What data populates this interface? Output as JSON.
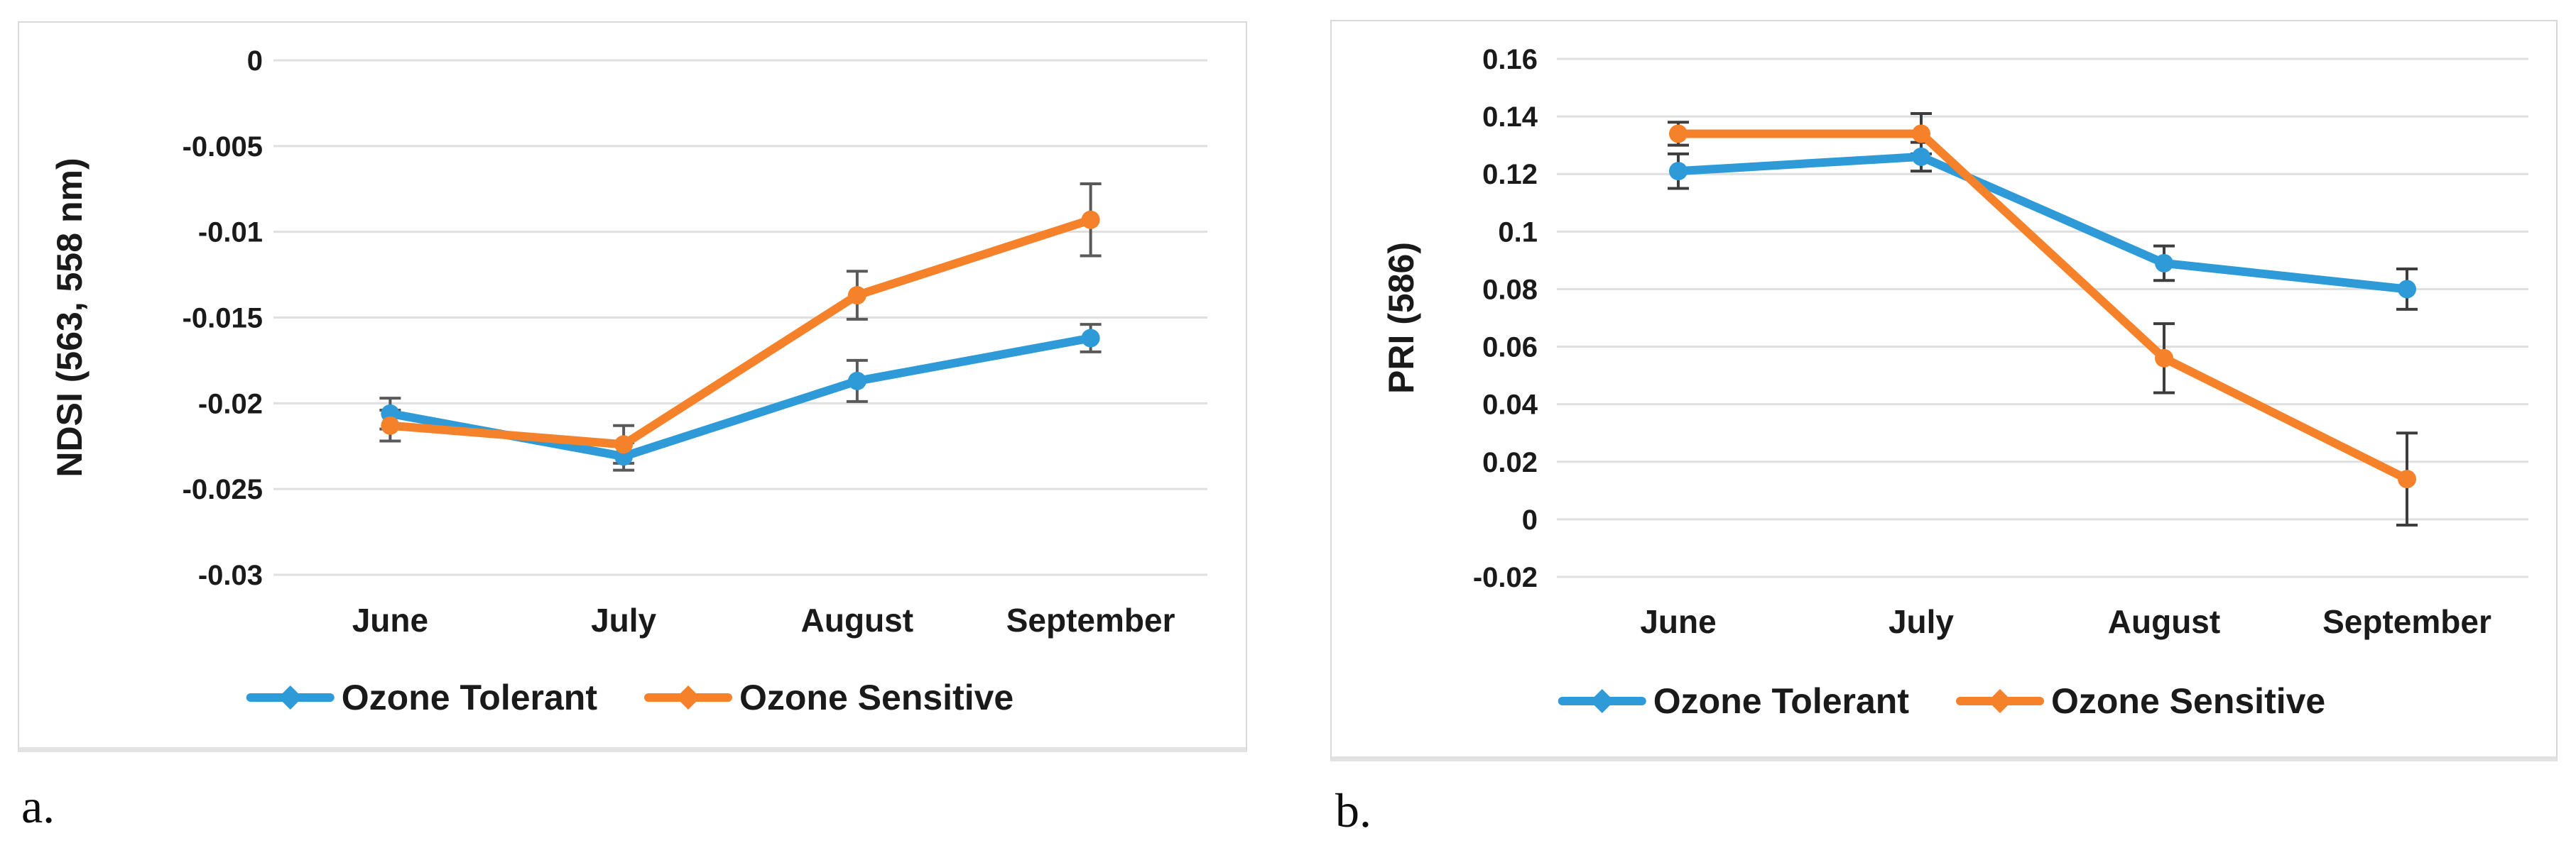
{
  "panel_labels": [
    "a.",
    "b."
  ],
  "colors": {
    "series_blue": "#2E9BD8",
    "series_orange": "#F5822B",
    "gridline": "#DFDFDF",
    "error_bar_a": "#595959",
    "error_bar_b": "#3D3D3D",
    "text": "#1a1a1a",
    "panel_border": "#D9D9D9"
  },
  "chart_data": [
    {
      "type": "line",
      "title": "",
      "xlabel": "",
      "ylabel": "NDSI (563, 558 nm)",
      "categories": [
        "June",
        "July",
        "August",
        "September"
      ],
      "yticks": [
        0,
        -0.005,
        -0.01,
        -0.015,
        -0.02,
        -0.025,
        -0.03
      ],
      "ytick_labels": [
        "0",
        "-0.005",
        "-0.01",
        "-0.015",
        "-0.02",
        "-0.025",
        "-0.03"
      ],
      "ylim": [
        -0.03,
        0
      ],
      "grid": true,
      "legend_position": "bottom",
      "error_bar_color": "#595959",
      "series": [
        {
          "name": "Ozone Tolerant",
          "color": "#2E9BD8",
          "values": [
            -0.0206,
            -0.0231,
            -0.0187,
            -0.0162
          ],
          "errors": [
            0.0009,
            0.0008,
            0.0012,
            0.0008
          ]
        },
        {
          "name": "Ozone Sensitive",
          "color": "#F5822B",
          "values": [
            -0.0213,
            -0.0224,
            -0.0137,
            -0.0093
          ],
          "errors": [
            0.0009,
            0.0011,
            0.0014,
            0.0021
          ]
        }
      ]
    },
    {
      "type": "line",
      "title": "",
      "xlabel": "",
      "ylabel": "PRI (586)",
      "categories": [
        "June",
        "July",
        "August",
        "September"
      ],
      "yticks": [
        0.16,
        0.14,
        0.12,
        0.1,
        0.08,
        0.06,
        0.04,
        0.02,
        0,
        -0.02
      ],
      "ytick_labels": [
        "0.16",
        "0.14",
        "0.12",
        "0.1",
        "0.08",
        "0.06",
        "0.04",
        "0.02",
        "0",
        "-0.02"
      ],
      "ylim": [
        -0.02,
        0.16
      ],
      "grid": true,
      "legend_position": "bottom",
      "error_bar_color": "#3D3D3D",
      "series": [
        {
          "name": "Ozone Tolerant",
          "color": "#2E9BD8",
          "values": [
            0.121,
            0.126,
            0.089,
            0.08
          ],
          "errors": [
            0.006,
            0.005,
            0.006,
            0.007
          ]
        },
        {
          "name": "Ozone Sensitive",
          "color": "#F5822B",
          "values": [
            0.134,
            0.134,
            0.056,
            0.014
          ],
          "errors": [
            0.004,
            0.007,
            0.012,
            0.016
          ]
        }
      ]
    }
  ]
}
